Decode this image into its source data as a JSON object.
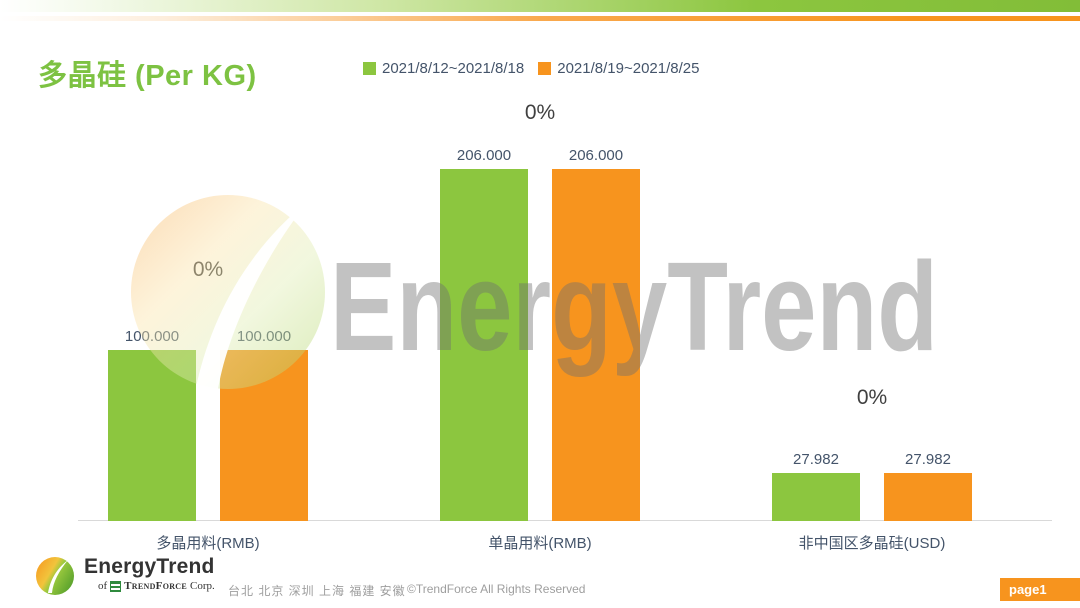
{
  "colors": {
    "brand_green": "#8CC63F",
    "brand_orange": "#F7941E",
    "title_green": "#7DC242",
    "label_dark": "#44546A"
  },
  "header": {
    "title": "多晶硅 (Per KG)",
    "legend": [
      {
        "label": "2021/8/12~2021/8/18",
        "color": "#8CC63F"
      },
      {
        "label": "2021/8/19~2021/8/25",
        "color": "#F7941E"
      }
    ]
  },
  "chart_data": {
    "type": "bar",
    "title": "多晶硅 (Per KG)",
    "categories": [
      "多晶用料(RMB)",
      "单晶用料(RMB)",
      "非中国区多晶硅(USD)"
    ],
    "series": [
      {
        "name": "2021/8/12~2021/8/18",
        "color": "#8CC63F",
        "values": [
          100.0,
          206.0,
          27.982
        ],
        "labels": [
          "100.000",
          "206.000",
          "27.982"
        ]
      },
      {
        "name": "2021/8/19~2021/8/25",
        "color": "#F7941E",
        "values": [
          100.0,
          206.0,
          27.982
        ],
        "labels": [
          "100.000",
          "206.000",
          "27.982"
        ]
      }
    ],
    "change_labels": [
      "0%",
      "0%",
      "0%"
    ],
    "xlabel": "",
    "ylabel": "",
    "ylim": [
      0,
      230
    ],
    "grid": false,
    "legend_position": "top",
    "axis_labels_hidden": true
  },
  "watermark": {
    "text": "EnergyTrend"
  },
  "footer": {
    "logo_title": "EnergyTrend",
    "logo_sub_prefix": "of",
    "logo_sub_brand": "TrendForce",
    "logo_sub_suffix": "Corp.",
    "locations": "台北  北京  深圳  上海  福建  安徽",
    "copyright": "©TrendForce All Rights Reserved",
    "page_label": "page1"
  }
}
